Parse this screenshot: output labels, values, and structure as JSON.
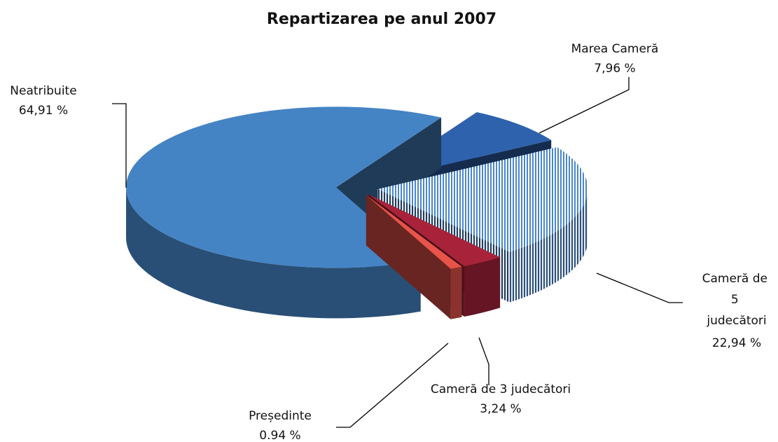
{
  "chart_data": {
    "type": "pie3d",
    "title": "Repartizarea pe anul 2007",
    "categories": [
      "Marea Cameră",
      "Cameră de 5 judecători",
      "Cameră de 3 judecători",
      "Președinte",
      "Neatribuite"
    ],
    "values": [
      7.96,
      22.94,
      3.24,
      0.94,
      64.91
    ],
    "value_labels": [
      "7,96 %",
      "22,94 %",
      "3,24 %",
      "0.94 %",
      "64,91 %"
    ],
    "colors": [
      "#2e62ad",
      "#4a86cc",
      "#a8233a",
      "#e8534a",
      "#4584c4"
    ],
    "hatched": [
      false,
      true,
      false,
      false,
      false
    ],
    "exploded": true
  }
}
